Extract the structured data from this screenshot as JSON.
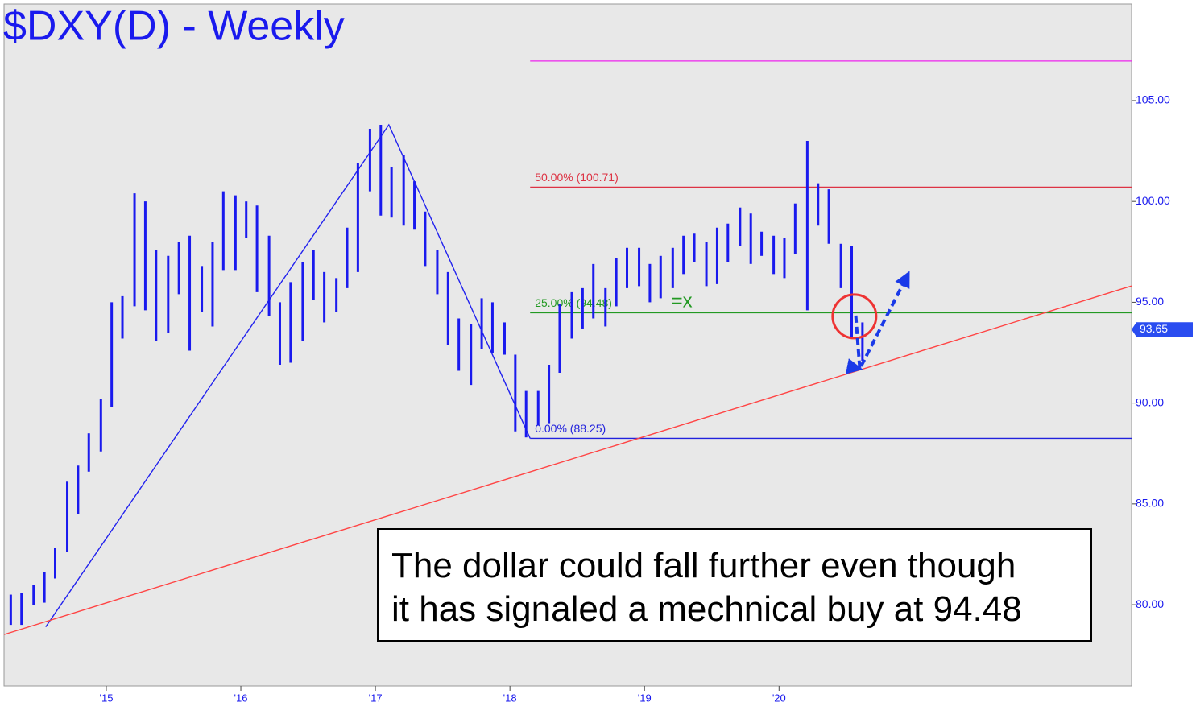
{
  "chart_data": {
    "type": "ohlc",
    "title": "$DXY(D) - Weekly",
    "xlim": [
      2014.24,
      2022.62
    ],
    "ylim": [
      75.97,
      109.79
    ],
    "xticks": [
      {
        "value": 2015,
        "label": "'15"
      },
      {
        "value": 2016,
        "label": "'16"
      },
      {
        "value": 2017,
        "label": "'17"
      },
      {
        "value": 2018,
        "label": "'18"
      },
      {
        "value": 2019,
        "label": "'19"
      },
      {
        "value": 2020,
        "label": "'20"
      }
    ],
    "yticks": [
      {
        "value": 80,
        "label": "80.00"
      },
      {
        "value": 85,
        "label": "85.00"
      },
      {
        "value": 90,
        "label": "90.00"
      },
      {
        "value": 95,
        "label": "95.00"
      },
      {
        "value": 100,
        "label": "100.00"
      },
      {
        "value": 105,
        "label": "105.00"
      }
    ],
    "color": "#1a1aee",
    "x": [
      2014.29,
      2014.37,
      2014.46,
      2014.54,
      2014.62,
      2014.71,
      2014.79,
      2014.87,
      2014.96,
      2015.04,
      2015.12,
      2015.21,
      2015.29,
      2015.37,
      2015.46,
      2015.54,
      2015.62,
      2015.71,
      2015.79,
      2015.87,
      2015.96,
      2016.04,
      2016.12,
      2016.21,
      2016.29,
      2016.37,
      2016.46,
      2016.54,
      2016.62,
      2016.71,
      2016.79,
      2016.87,
      2016.96,
      2017.04,
      2017.12,
      2017.21,
      2017.29,
      2017.37,
      2017.46,
      2017.54,
      2017.62,
      2017.71,
      2017.79,
      2017.87,
      2017.96,
      2018.04,
      2018.12,
      2018.21,
      2018.29,
      2018.37,
      2018.46,
      2018.54,
      2018.62,
      2018.71,
      2018.79,
      2018.87,
      2018.96,
      2019.04,
      2019.12,
      2019.21,
      2019.29,
      2019.37,
      2019.46,
      2019.54,
      2019.62,
      2019.71,
      2019.79,
      2019.87,
      2019.96,
      2020.04,
      2020.12,
      2020.21,
      2020.29,
      2020.37,
      2020.46,
      2020.54,
      2020.62
    ],
    "high": [
      80.5,
      80.6,
      81.0,
      81.6,
      82.8,
      86.1,
      86.9,
      88.5,
      90.2,
      95.0,
      95.3,
      100.4,
      100.0,
      97.6,
      97.3,
      98.0,
      98.3,
      96.8,
      98.0,
      100.5,
      100.3,
      100.0,
      99.8,
      98.3,
      95.0,
      96.0,
      97.0,
      97.6,
      96.5,
      96.2,
      98.7,
      101.9,
      103.6,
      103.8,
      101.7,
      102.3,
      101.0,
      99.5,
      97.6,
      96.5,
      94.2,
      93.9,
      95.2,
      95.0,
      94.0,
      92.4,
      90.6,
      90.6,
      91.9,
      94.9,
      95.5,
      95.7,
      96.9,
      95.7,
      97.2,
      97.7,
      97.7,
      96.9,
      97.3,
      97.7,
      98.3,
      98.4,
      98.0,
      98.7,
      98.9,
      99.7,
      99.4,
      98.5,
      98.3,
      98.2,
      99.9,
      103.0,
      100.9,
      100.6,
      97.9,
      97.8,
      94.0
    ],
    "low": [
      79.0,
      79.0,
      80.0,
      80.1,
      81.3,
      82.6,
      84.5,
      86.6,
      87.6,
      89.8,
      93.2,
      94.8,
      94.6,
      93.1,
      93.5,
      95.4,
      92.6,
      94.5,
      93.8,
      96.6,
      96.6,
      98.2,
      95.5,
      94.3,
      91.9,
      92.0,
      93.1,
      95.1,
      94.0,
      94.5,
      95.7,
      96.5,
      100.5,
      99.3,
      99.2,
      98.8,
      98.6,
      96.8,
      95.4,
      92.9,
      91.6,
      90.9,
      92.7,
      92.5,
      92.4,
      88.6,
      88.3,
      88.9,
      89.0,
      91.5,
      93.2,
      93.7,
      94.2,
      93.8,
      94.8,
      95.7,
      95.8,
      95.0,
      95.2,
      95.7,
      96.4,
      97.0,
      95.8,
      95.9,
      97.0,
      97.8,
      96.9,
      97.3,
      96.4,
      96.2,
      97.4,
      94.6,
      98.8,
      97.9,
      95.7,
      93.2,
      92.1
    ],
    "last_price": 93.65,
    "fib_start": 2018.15,
    "levels": [
      {
        "value": 106.96,
        "color": "#ee22ee"
      },
      {
        "label": "50.00% (100.71)",
        "value": 100.71,
        "color": "#dd3344"
      },
      {
        "label": "25.00% (94.48)",
        "value": 94.48,
        "color": "#229922"
      },
      {
        "label": "0.00% (88.25)",
        "value": 88.25,
        "color": "#2222dd"
      }
    ],
    "lines": [
      {
        "color": "#2222ee",
        "x": [
          2014.55,
          2017.1,
          2018.15
        ],
        "y": [
          78.9,
          103.8,
          88.25
        ]
      },
      {
        "color": "#ff4444",
        "x": [
          2014.24,
          2022.62
        ],
        "y": [
          78.52,
          95.81
        ]
      }
    ],
    "arrows": {
      "color": "#1a3ae8",
      "x": [
        2020.57,
        2020.6,
        2020.96
      ],
      "y": [
        94.34,
        91.7,
        96.41
      ]
    },
    "circle": {
      "x": 2020.56,
      "y": 94.3,
      "color": "#ee3333"
    },
    "marker_text": {
      "text": "=x",
      "x": 2019.2,
      "y": 95.0,
      "color": "#229922"
    },
    "note": [
      "The dollar could fall further even though",
      "it has signaled a mechnical buy at 94.48"
    ]
  }
}
